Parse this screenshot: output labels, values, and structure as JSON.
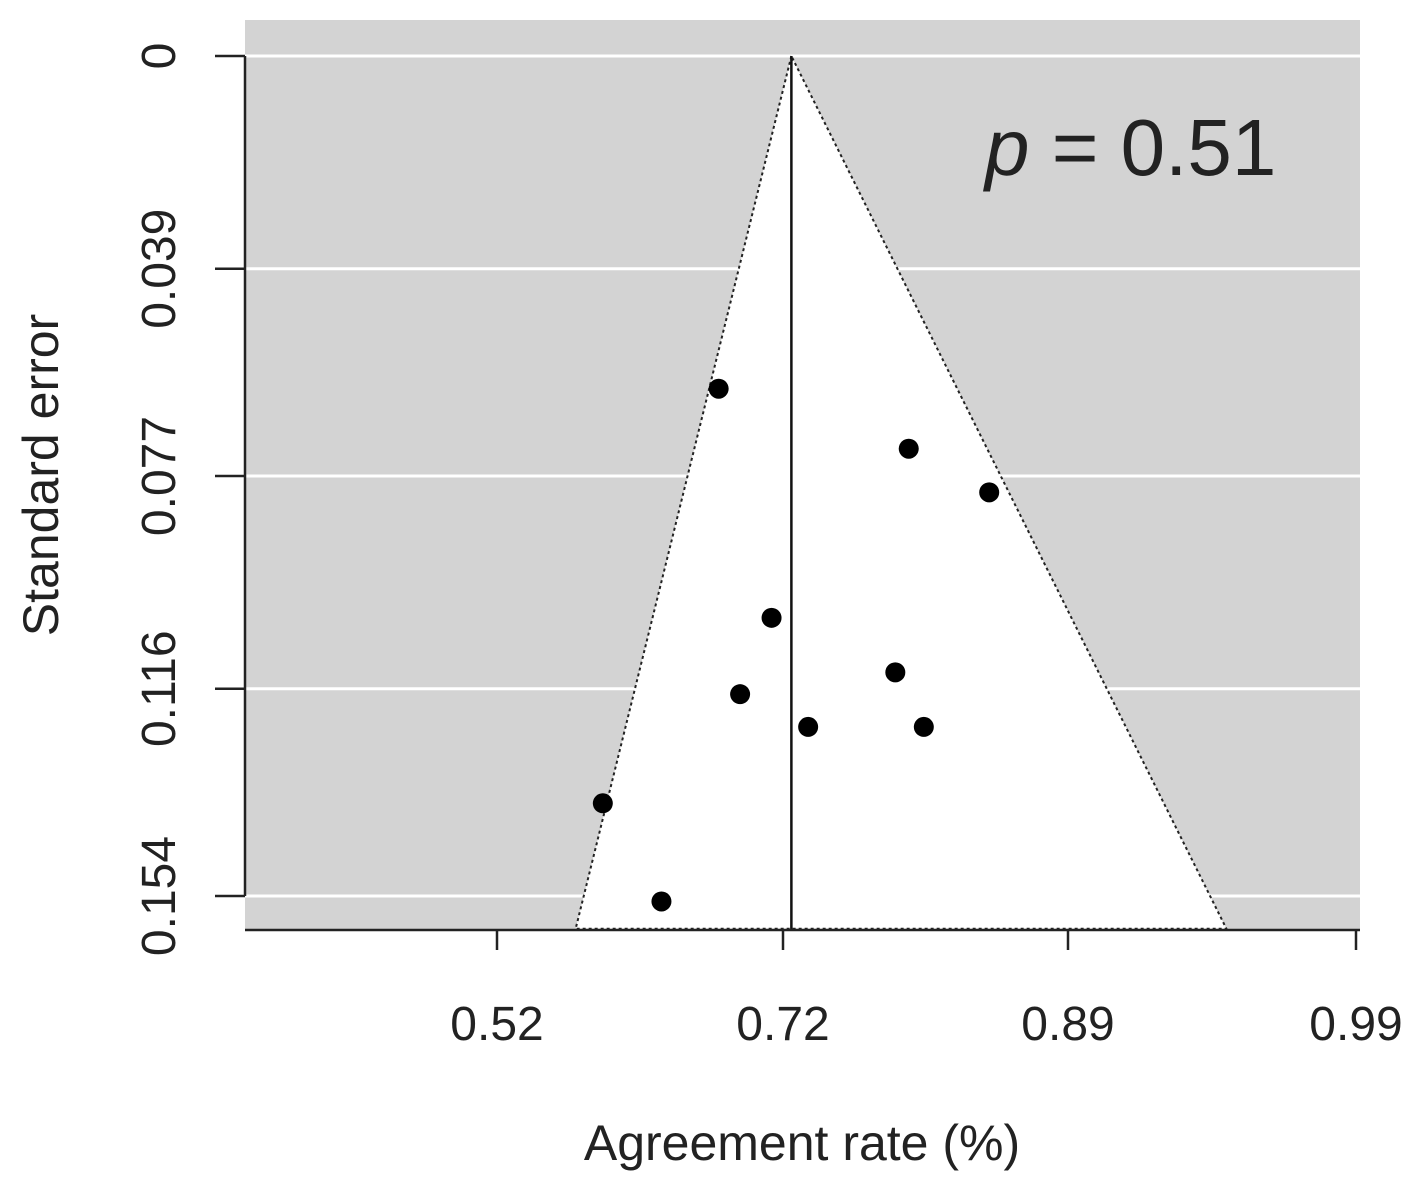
{
  "chart_data": {
    "type": "scatter",
    "title": "",
    "xlabel": "Agreement rate (%)",
    "ylabel": "Standard error",
    "x_tick_labels": [
      "0.52",
      "0.72",
      "0.89",
      "0.99"
    ],
    "y_tick_labels": [
      "0",
      "0.039",
      "0.077",
      "0.116",
      "0.154"
    ],
    "y_reversed": true,
    "grid": "horizontal",
    "annotation": {
      "italic": "p",
      "rest": " = 0.51"
    },
    "pooled_estimate": 0.725,
    "funnel_bounds": {
      "se_max": 0.16,
      "left": 0.575,
      "right": 0.945
    },
    "points": [
      {
        "x": 0.675,
        "y": 0.061
      },
      {
        "x": 0.795,
        "y": 0.072
      },
      {
        "x": 0.843,
        "y": 0.08
      },
      {
        "x": 0.712,
        "y": 0.103
      },
      {
        "x": 0.787,
        "y": 0.113
      },
      {
        "x": 0.69,
        "y": 0.117
      },
      {
        "x": 0.735,
        "y": 0.123
      },
      {
        "x": 0.804,
        "y": 0.123
      },
      {
        "x": 0.594,
        "y": 0.137
      },
      {
        "x": 0.635,
        "y": 0.155
      }
    ],
    "colors": {
      "background": "#d3d3d3",
      "funnel": "#ffffff",
      "gridline": "#ffffff",
      "point": "#000000",
      "axis": "#222222"
    }
  }
}
